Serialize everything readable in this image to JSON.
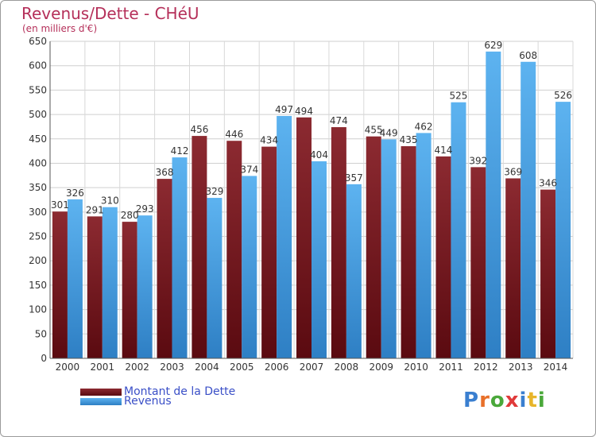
{
  "chart_data": {
    "type": "bar",
    "title": "Revenus/Dette - CHéU",
    "subtitle": "(en milliers d'€)",
    "xlabel": "",
    "ylabel": "",
    "categories": [
      "2000",
      "2001",
      "2002",
      "2003",
      "2004",
      "2005",
      "2006",
      "2007",
      "2008",
      "2009",
      "2010",
      "2011",
      "2012",
      "2013",
      "2014"
    ],
    "series": [
      {
        "name": "Montant de la Dette",
        "color": "#7a1e24",
        "values": [
          301,
          291,
          280,
          368,
          456,
          446,
          434,
          494,
          474,
          455,
          435,
          414,
          392,
          369,
          346
        ],
        "labels": [
          "301",
          "291",
          "280",
          "368",
          "456",
          "446",
          "434",
          "494",
          "474",
          "455",
          "435",
          "414",
          "392",
          "369",
          "346"
        ]
      },
      {
        "name": "Revenus",
        "color": "#4aa3e8",
        "values": [
          326,
          310,
          293,
          412,
          329,
          374,
          497,
          404,
          357,
          449,
          462,
          525,
          629,
          608,
          526
        ],
        "labels": [
          "326",
          "310",
          "293",
          "412",
          "329",
          "374",
          "497",
          "404",
          "357",
          "449",
          "462",
          "525",
          "629",
          "608",
          "526"
        ]
      }
    ],
    "ylim": [
      0,
      650
    ],
    "yticks": [
      0,
      50,
      100,
      150,
      200,
      250,
      300,
      350,
      400,
      450,
      500,
      550,
      600,
      650
    ],
    "grid": true,
    "legend_position": "bottom-left"
  },
  "logo": {
    "text": "Proxiti",
    "colors": [
      "#3a7fd0",
      "#e8702a",
      "#4aa83a",
      "#e03a3a",
      "#3a7fd0",
      "#e8b52a",
      "#4aa83a"
    ]
  }
}
